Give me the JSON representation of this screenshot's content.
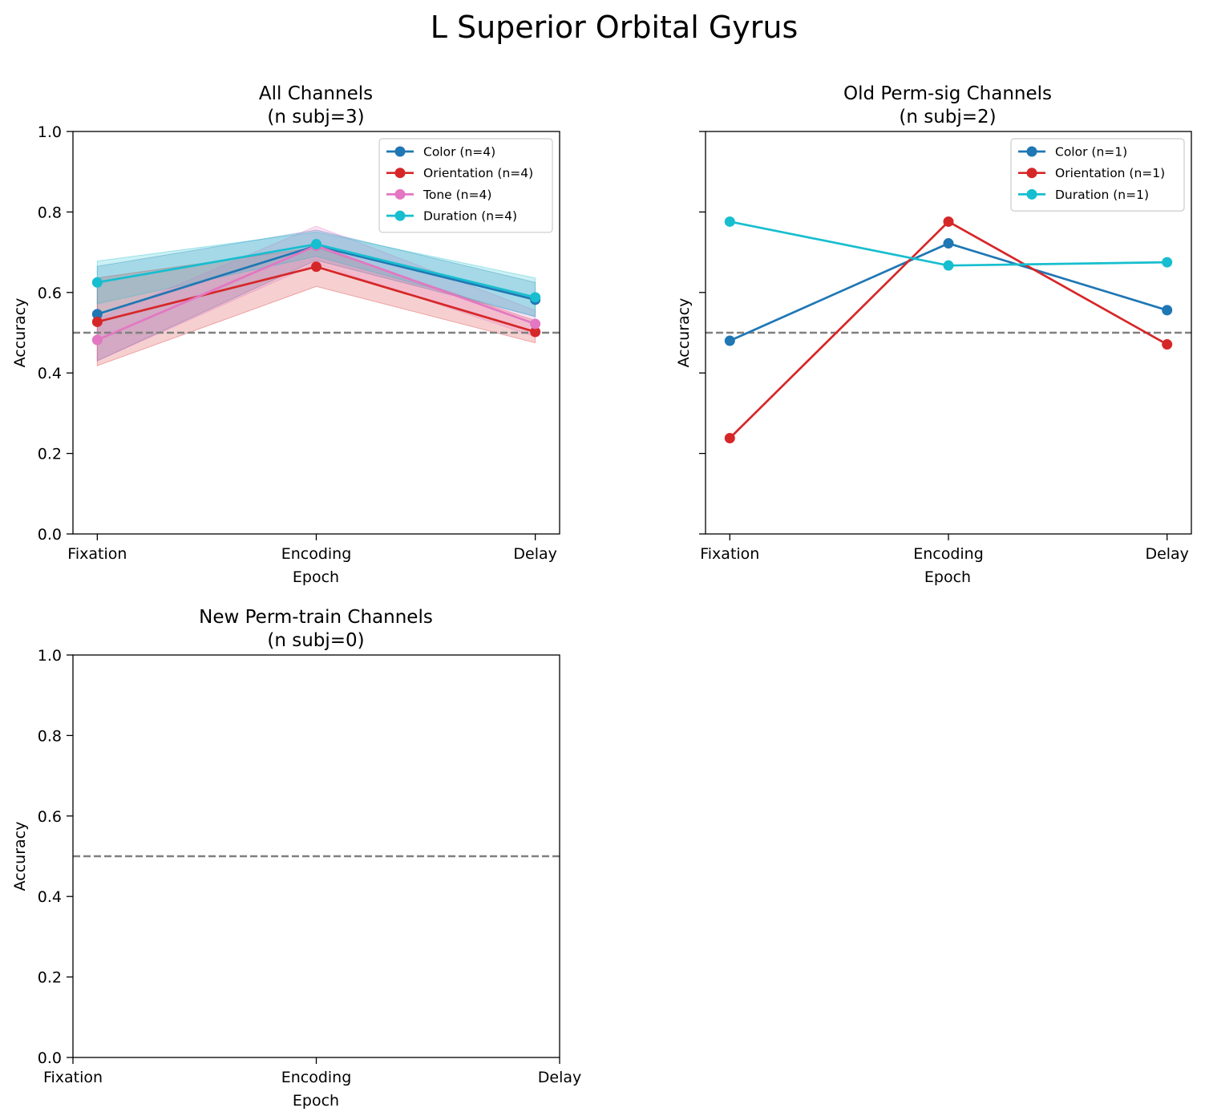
{
  "figure_title": "L Superior Orbital Gyrus",
  "colors": {
    "color": "#1f77b4",
    "orientation": "#d62728",
    "tone": "#e377c2",
    "duration": "#17becf",
    "chance": "#808080"
  },
  "chart_data": [
    {
      "type": "line",
      "title": "All Channels",
      "subtitle": "(n subj=3)",
      "xlabel": "Epoch",
      "ylabel": "Accuracy",
      "categories": [
        "Fixation",
        "Encoding",
        "Delay"
      ],
      "ylim": [
        0,
        1
      ],
      "yticks": [
        0.0,
        0.2,
        0.4,
        0.6,
        0.8,
        1.0
      ],
      "ytick_labels": [
        "0.0",
        "0.2",
        "0.4",
        "0.6",
        "0.8",
        "1.0"
      ],
      "show_ytick_labels": true,
      "chance_level": 0.5,
      "legend_position": "top-right",
      "series": [
        {
          "name": "Color (n=4)",
          "color_key": "color",
          "values": [
            0.546,
            0.716,
            0.582
          ],
          "lower": [
            0.43,
            0.68,
            0.54
          ],
          "upper": [
            0.665,
            0.755,
            0.625
          ]
        },
        {
          "name": "Orientation (n=4)",
          "color_key": "orientation",
          "values": [
            0.527,
            0.664,
            0.502
          ],
          "lower": [
            0.418,
            0.615,
            0.475
          ],
          "upper": [
            0.636,
            0.712,
            0.53
          ]
        },
        {
          "name": "Tone (n=4)",
          "color_key": "tone",
          "values": [
            0.482,
            0.716,
            0.522
          ],
          "lower": [
            0.43,
            0.672,
            0.49
          ],
          "upper": [
            0.534,
            0.765,
            0.555
          ]
        },
        {
          "name": "Duration (n=4)",
          "color_key": "duration",
          "values": [
            0.625,
            0.72,
            0.588
          ],
          "lower": [
            0.572,
            0.69,
            0.54
          ],
          "upper": [
            0.678,
            0.75,
            0.636
          ]
        }
      ]
    },
    {
      "type": "line",
      "title": "Old Perm-sig Channels",
      "subtitle": "(n subj=2)",
      "xlabel": "Epoch",
      "ylabel": "Accuracy",
      "categories": [
        "Fixation",
        "Encoding",
        "Delay"
      ],
      "ylim": [
        0,
        1
      ],
      "yticks": [
        0.0,
        0.2,
        0.4,
        0.6,
        0.8,
        1.0
      ],
      "show_ytick_labels": false,
      "chance_level": 0.5,
      "legend_position": "top-right",
      "series": [
        {
          "name": "Color (n=1)",
          "color_key": "color",
          "values": [
            0.48,
            0.722,
            0.556
          ]
        },
        {
          "name": "Orientation (n=1)",
          "color_key": "orientation",
          "values": [
            0.238,
            0.776,
            0.471
          ]
        },
        {
          "name": "Duration (n=1)",
          "color_key": "duration",
          "values": [
            0.776,
            0.667,
            0.675
          ]
        }
      ]
    },
    {
      "type": "line",
      "title": "New Perm-train Channels",
      "subtitle": "(n subj=0)",
      "xlabel": "Epoch",
      "ylabel": "Accuracy",
      "categories": [
        "Fixation",
        "Encoding",
        "Delay"
      ],
      "ylim": [
        0,
        1
      ],
      "yticks": [
        0.0,
        0.2,
        0.4,
        0.6,
        0.8,
        1.0
      ],
      "ytick_labels": [
        "0.0",
        "0.2",
        "0.4",
        "0.6",
        "0.8",
        "1.0"
      ],
      "show_ytick_labels": true,
      "chance_level": 0.5,
      "x_at_edges": true,
      "series": []
    }
  ]
}
